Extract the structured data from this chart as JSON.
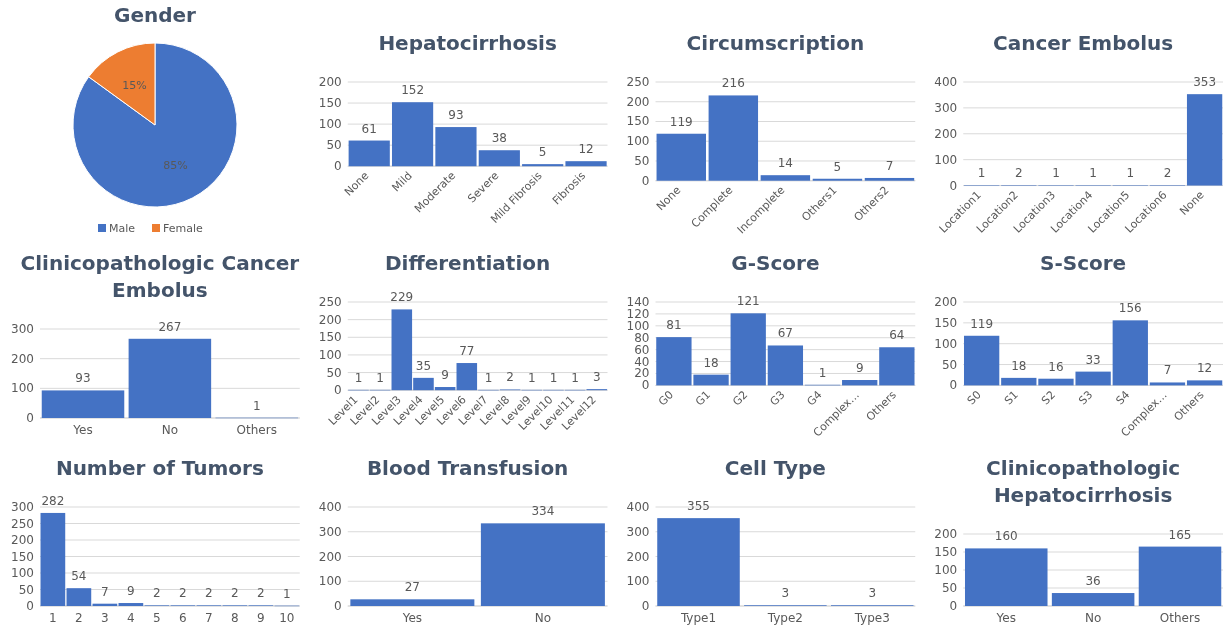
{
  "chart_data": [
    {
      "type": "pie",
      "title": "Gender",
      "categories": [
        "Male",
        "Female"
      ],
      "values": [
        85,
        15
      ],
      "colors": [
        "#4472c4",
        "#ed7d31"
      ],
      "value_labels": [
        "85%",
        "15%"
      ],
      "legend": "bottom"
    },
    {
      "type": "bar",
      "title": "Hepatocirrhosis",
      "categories": [
        "None",
        "Mild",
        "Moderate",
        "Severe",
        "Mild Fibrosis",
        "Fibrosis"
      ],
      "values": [
        61,
        152,
        93,
        38,
        5,
        12
      ],
      "color": "#4472c4",
      "ylim": [
        0,
        200
      ],
      "yticks": [
        0,
        50,
        100,
        150,
        200
      ],
      "grid": "y",
      "data_labels": true
    },
    {
      "type": "bar",
      "title": "Circumscription",
      "categories": [
        "None",
        "Complete",
        "Incomplete",
        "Others1",
        "Others2"
      ],
      "values": [
        119,
        216,
        14,
        5,
        7
      ],
      "color": "#4472c4",
      "ylim": [
        0,
        250
      ],
      "yticks": [
        0,
        50,
        100,
        150,
        200,
        250
      ],
      "grid": "y",
      "data_labels": true
    },
    {
      "type": "bar",
      "title": "Cancer Embolus",
      "categories": [
        "Location1",
        "Location2",
        "Location3",
        "Location4",
        "Location5",
        "Location6",
        "None"
      ],
      "values": [
        1,
        2,
        1,
        1,
        1,
        2,
        353
      ],
      "color": "#4472c4",
      "ylim": [
        0,
        400
      ],
      "yticks": [
        0,
        100,
        200,
        300,
        400
      ],
      "grid": "y",
      "data_labels": true
    },
    {
      "type": "bar",
      "title": "Clinicopathologic Cancer Embolus",
      "categories": [
        "Yes",
        "No",
        "Others"
      ],
      "values": [
        93,
        267,
        1
      ],
      "color": "#4472c4",
      "ylim": [
        0,
        300
      ],
      "yticks": [
        0,
        100,
        200,
        300
      ],
      "grid": "y",
      "data_labels": true
    },
    {
      "type": "bar",
      "title": "Differentiation",
      "categories": [
        "Level1",
        "Level2",
        "Level3",
        "Level4",
        "Level5",
        "Level6",
        "Level7",
        "Level8",
        "Level9",
        "Level10",
        "Level11",
        "Level12"
      ],
      "values": [
        1,
        1,
        229,
        35,
        9,
        77,
        1,
        2,
        1,
        1,
        1,
        3
      ],
      "color": "#4472c4",
      "ylim": [
        0,
        250
      ],
      "yticks": [
        0,
        50,
        100,
        150,
        200,
        250
      ],
      "grid": "y",
      "data_labels": true
    },
    {
      "type": "bar",
      "title": "G-Score",
      "categories": [
        "G0",
        "G1",
        "G2",
        "G3",
        "G4",
        "Complex…",
        "Others"
      ],
      "values": [
        81,
        18,
        121,
        67,
        1,
        9,
        64
      ],
      "color": "#4472c4",
      "ylim": [
        0,
        140
      ],
      "yticks": [
        0,
        20,
        40,
        60,
        80,
        100,
        120,
        140
      ],
      "grid": "y",
      "data_labels": true
    },
    {
      "type": "bar",
      "title": "S-Score",
      "categories": [
        "S0",
        "S1",
        "S2",
        "S3",
        "S4",
        "Complex…",
        "Others"
      ],
      "values": [
        119,
        18,
        16,
        33,
        156,
        7,
        12
      ],
      "color": "#4472c4",
      "ylim": [
        0,
        200
      ],
      "yticks": [
        0,
        50,
        100,
        150,
        200
      ],
      "grid": "y",
      "data_labels": true
    },
    {
      "type": "bar",
      "title": "Number of Tumors",
      "categories": [
        "1",
        "2",
        "3",
        "4",
        "5",
        "6",
        "7",
        "8",
        "9",
        "10"
      ],
      "values": [
        282,
        54,
        7,
        9,
        2,
        2,
        2,
        2,
        2,
        1
      ],
      "color": "#4472c4",
      "ylim": [
        0,
        300
      ],
      "yticks": [
        0,
        50,
        100,
        150,
        200,
        250,
        300
      ],
      "grid": "y",
      "data_labels": true
    },
    {
      "type": "bar",
      "title": "Blood Transfusion",
      "categories": [
        "Yes",
        "No"
      ],
      "values": [
        27,
        334
      ],
      "color": "#4472c4",
      "ylim": [
        0,
        400
      ],
      "yticks": [
        0,
        100,
        200,
        300,
        400
      ],
      "grid": "y",
      "data_labels": true
    },
    {
      "type": "bar",
      "title": "Cell Type",
      "categories": [
        "Type1",
        "Type2",
        "Type3"
      ],
      "values": [
        355,
        3,
        3
      ],
      "color": "#4472c4",
      "ylim": [
        0,
        400
      ],
      "yticks": [
        0,
        100,
        200,
        300,
        400
      ],
      "grid": "y",
      "data_labels": true
    },
    {
      "type": "bar",
      "title": "Clinicopathologic Hepatocirrhosis",
      "categories": [
        "Yes",
        "No",
        "Others"
      ],
      "values": [
        160,
        36,
        165
      ],
      "color": "#4472c4",
      "ylim": [
        0,
        200
      ],
      "yticks": [
        0,
        50,
        100,
        150,
        200
      ],
      "grid": "y",
      "data_labels": true
    }
  ]
}
